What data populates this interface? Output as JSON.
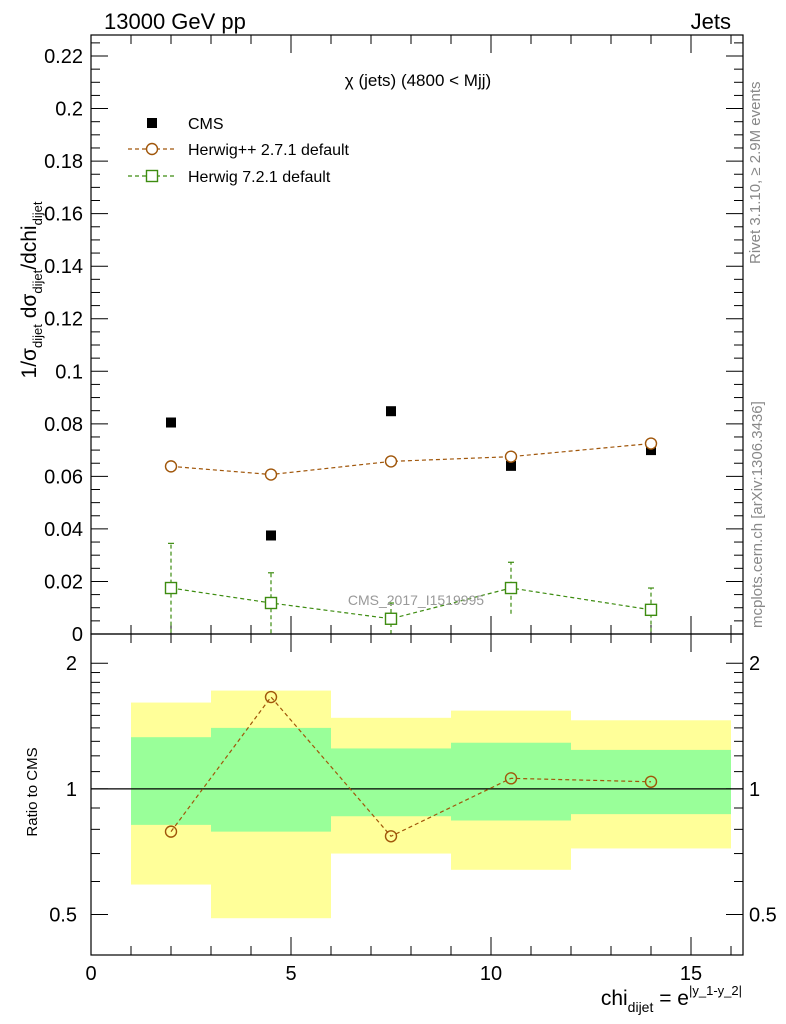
{
  "header": {
    "left": "13000 GeV pp",
    "right": "Jets"
  },
  "side_labels": {
    "rivet": "Rivet 3.1.10, ≥ 2.9M events",
    "mcplots": "mcplots.cern.ch [arXiv:1306.3436]"
  },
  "watermark": "CMS_2017_I1519995",
  "colors": {
    "cms": "#000000",
    "herwigpp": "#a0560a",
    "herwig7": "#3d8c10",
    "band_inner": "#99ff99",
    "band_outer": "#ffff99"
  },
  "chart_data": [
    {
      "type": "scatter",
      "title": "χ (jets) (4800 < Mjj)",
      "ylabel": "1/σ_dijet dσ_dijet/dchi_dijet",
      "xlim": [
        0,
        16.3
      ],
      "ylim": [
        0,
        0.228
      ],
      "yticks": [
        "0",
        "0.02",
        "0.04",
        "0.06",
        "0.08",
        "0.1",
        "0.12",
        "0.14",
        "0.16",
        "0.18",
        "0.2",
        "0.22"
      ],
      "legend_position": "top-left",
      "series": [
        {
          "name": "CMS",
          "marker": "filled-square",
          "color": "#000000",
          "x": [
            2.0,
            4.5,
            7.5,
            10.5,
            14.0
          ],
          "y": [
            0.0805,
            0.0375,
            0.0848,
            0.064,
            0.07
          ]
        },
        {
          "name": "Herwig++ 2.7.1 default",
          "marker": "open-circle",
          "line": "dashed",
          "color": "#a0560a",
          "x": [
            2.0,
            4.5,
            7.5,
            10.5,
            14.0
          ],
          "y": [
            0.0638,
            0.0607,
            0.0657,
            0.0675,
            0.0725
          ]
        },
        {
          "name": "Herwig 7.2.1 default",
          "marker": "open-square",
          "line": "dashed",
          "color": "#3d8c10",
          "x": [
            2.0,
            4.5,
            7.5,
            10.5,
            14.0
          ],
          "y": [
            0.0175,
            0.0118,
            0.0058,
            0.0175,
            0.0092
          ],
          "err": [
            0.017,
            0.0115,
            0.006,
            0.0098,
            0.0083
          ]
        }
      ]
    },
    {
      "type": "line",
      "ylabel": "Ratio to CMS",
      "xlabel": "chi_dijet = e^|y_1-y_2|",
      "xlim": [
        0,
        16.3
      ],
      "ylim": [
        0.4,
        2.35
      ],
      "log_y": true,
      "xticks": [
        "0",
        "5",
        "10",
        "15"
      ],
      "yticks": [
        "0.5",
        "1",
        "2"
      ],
      "reference_line": 1,
      "bands": {
        "bins": [
          [
            1,
            3
          ],
          [
            3,
            6
          ],
          [
            6,
            9
          ],
          [
            9,
            12
          ],
          [
            12,
            16
          ]
        ],
        "inner": [
          [
            0.82,
            1.33
          ],
          [
            0.79,
            1.4
          ],
          [
            0.86,
            1.25
          ],
          [
            0.84,
            1.29
          ],
          [
            0.87,
            1.24
          ]
        ],
        "outer": [
          [
            0.59,
            1.61
          ],
          [
            0.49,
            1.72
          ],
          [
            0.7,
            1.48
          ],
          [
            0.64,
            1.54
          ],
          [
            0.72,
            1.46
          ]
        ]
      },
      "series": [
        {
          "name": "Herwig++ 2.7.1 default",
          "color": "#a0560a",
          "x": [
            2.0,
            4.5,
            7.5,
            10.5,
            14.0
          ],
          "y": [
            0.79,
            1.66,
            0.77,
            1.06,
            1.04
          ]
        }
      ]
    }
  ]
}
